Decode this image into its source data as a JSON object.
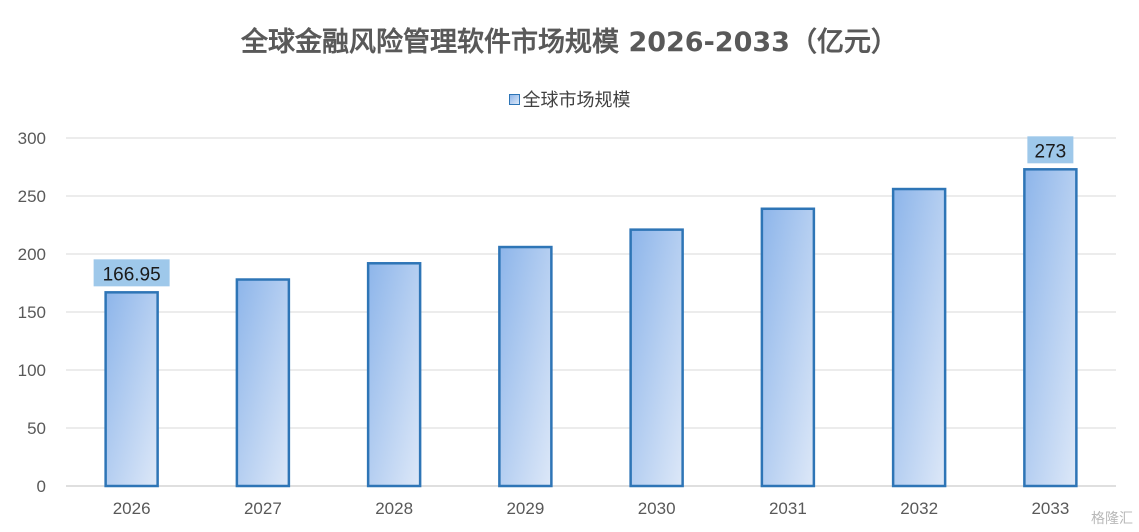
{
  "chart_data": {
    "type": "bar",
    "title": "全球金融风险管理软件市场规模 2026-2033（亿元）",
    "categories": [
      "2026",
      "2027",
      "2028",
      "2029",
      "2030",
      "2031",
      "2032",
      "2033"
    ],
    "series": [
      {
        "name": "全球市场规模",
        "values": [
          166.95,
          178,
          192,
          206,
          221,
          239,
          256,
          273
        ]
      }
    ],
    "data_labels": [
      {
        "index": 0,
        "text": "166.95"
      },
      {
        "index": 7,
        "text": "273"
      }
    ],
    "ylim": [
      0,
      300
    ],
    "yticks": [
      "0",
      "50",
      "100",
      "150",
      "200",
      "250",
      "300"
    ],
    "grid": true,
    "legend_position": "top",
    "colors": {
      "bar_border": "#2e75b6",
      "bar_fill_top": "#8db5ea",
      "bar_fill_bottom": "#dde8f8",
      "label_bg": "#9ec8ea",
      "grid": "#d9d9d9"
    }
  },
  "watermark": "格隆汇"
}
